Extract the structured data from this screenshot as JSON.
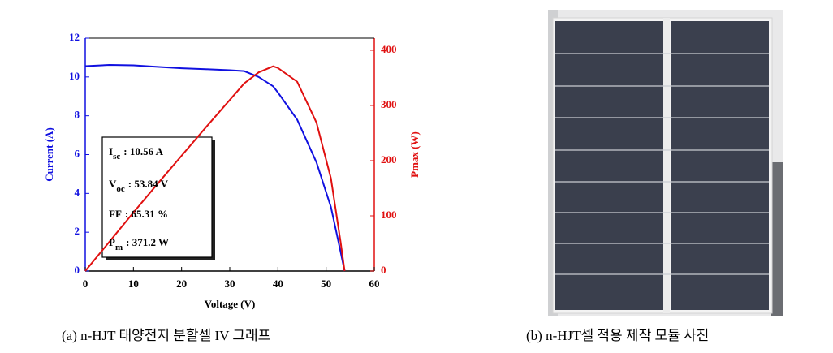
{
  "chart_data": {
    "type": "line",
    "xlabel": "Voltage (V)",
    "ylabel": "Current (A)",
    "y2label": "Pmax (W)",
    "x": [
      0,
      5,
      10,
      15,
      20,
      25,
      30,
      33,
      36,
      39,
      40,
      44,
      48,
      51,
      53,
      53.84
    ],
    "series": [
      {
        "color": "#1010e0",
        "axis": "y",
        "values": [
          10.56,
          10.62,
          10.6,
          10.52,
          10.45,
          10.4,
          10.35,
          10.3,
          10.0,
          9.52,
          9.2,
          7.8,
          5.6,
          3.3,
          1.0,
          0
        ]
      },
      {
        "color": "#e01010",
        "axis": "y2",
        "values": [
          0,
          53,
          106,
          158,
          209,
          260,
          310,
          340,
          360,
          371,
          368,
          343,
          269,
          168,
          53,
          0
        ]
      }
    ],
    "xlim": [
      0,
      60
    ],
    "xticks": [
      0,
      10,
      20,
      30,
      40,
      50,
      60
    ],
    "ylim": [
      0,
      12
    ],
    "yticks": [
      0,
      2,
      4,
      6,
      8,
      10,
      12
    ],
    "y2lim": [
      0,
      422
    ],
    "y2ticks": [
      0,
      100,
      200,
      300,
      400
    ],
    "annotations": [
      {
        "symbol": "I",
        "sub": "sc",
        "text": ": 10.56 A"
      },
      {
        "symbol": "V",
        "sub": "oc",
        "text": ": 53.84 V"
      },
      {
        "symbol": "FF",
        "sub": "",
        "text": ": 65.31 %"
      },
      {
        "symbol": "P",
        "sub": "m",
        "text": ": 371.2 W"
      }
    ]
  },
  "captions": [
    "(a) n-HJT 태양전지 분할셀 IV 그래프",
    "(b) n-HJT셀 적용 제작 모듈 사진"
  ]
}
